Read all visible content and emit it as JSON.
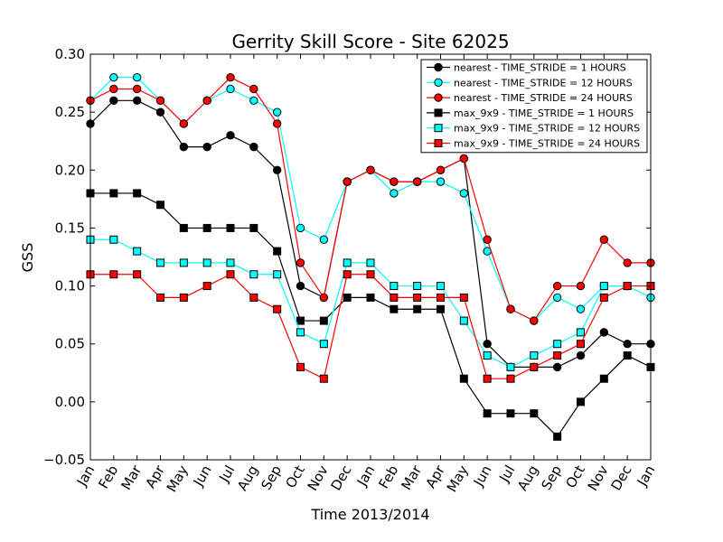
{
  "chart_data": {
    "type": "line",
    "title": "Gerrity Skill Score - Site 62025",
    "xlabel": "Time 2013/2014",
    "ylabel": "GSS",
    "ylim": [
      -0.05,
      0.3
    ],
    "yticks": [
      -0.05,
      0.0,
      0.05,
      0.1,
      0.15,
      0.2,
      0.25,
      0.3
    ],
    "ytick_labels": [
      "−0.05",
      "0.00",
      "0.05",
      "0.10",
      "0.15",
      "0.20",
      "0.25",
      "0.30"
    ],
    "categories": [
      "Jan",
      "Feb",
      "Mar",
      "Apr",
      "May",
      "Jun",
      "Jul",
      "Aug",
      "Sep",
      "Oct",
      "Nov",
      "Dec",
      "Jan",
      "Feb",
      "Mar",
      "Apr",
      "May",
      "Jun",
      "Jul",
      "Aug",
      "Sep",
      "Oct",
      "Nov",
      "Dec",
      "Jan"
    ],
    "grid": false,
    "legend_position": "top-right",
    "series": [
      {
        "name": "nearest - TIME_STRIDE = 1 HOURS",
        "marker": "circle",
        "color": "#000000",
        "values": [
          0.24,
          0.26,
          0.26,
          0.25,
          0.22,
          0.22,
          0.23,
          0.22,
          0.2,
          0.1,
          0.09,
          0.19,
          0.2,
          0.19,
          0.19,
          0.2,
          0.21,
          0.05,
          0.03,
          0.03,
          0.03,
          0.04,
          0.06,
          0.05,
          0.05
        ]
      },
      {
        "name": "nearest - TIME_STRIDE = 12 HOURS",
        "marker": "circle",
        "color": "#00ffff",
        "values": [
          0.26,
          0.28,
          0.28,
          0.26,
          0.24,
          0.26,
          0.27,
          0.26,
          0.25,
          0.15,
          0.14,
          0.19,
          0.2,
          0.18,
          0.19,
          0.19,
          0.18,
          0.13,
          0.08,
          0.07,
          0.09,
          0.08,
          0.1,
          0.1,
          0.09
        ]
      },
      {
        "name": "nearest - TIME_STRIDE = 24 HOURS",
        "marker": "circle",
        "color": "#ff0000",
        "values": [
          0.26,
          0.27,
          0.27,
          0.26,
          0.24,
          0.26,
          0.28,
          0.27,
          0.24,
          0.12,
          0.09,
          0.19,
          0.2,
          0.19,
          0.19,
          0.2,
          0.21,
          0.14,
          0.08,
          0.07,
          0.1,
          0.1,
          0.14,
          0.12,
          0.12
        ]
      },
      {
        "name": "max_9x9 - TIME_STRIDE = 1 HOURS",
        "marker": "square",
        "color": "#000000",
        "values": [
          0.18,
          0.18,
          0.18,
          0.17,
          0.15,
          0.15,
          0.15,
          0.15,
          0.13,
          0.07,
          0.07,
          0.09,
          0.09,
          0.08,
          0.08,
          0.08,
          0.02,
          -0.01,
          -0.01,
          -0.01,
          -0.03,
          0.0,
          0.02,
          0.04,
          0.03
        ]
      },
      {
        "name": "max_9x9 - TIME_STRIDE = 12 HOURS",
        "marker": "square",
        "color": "#00ffff",
        "values": [
          0.14,
          0.14,
          0.13,
          0.12,
          0.12,
          0.12,
          0.12,
          0.11,
          0.11,
          0.06,
          0.05,
          0.12,
          0.12,
          0.1,
          0.1,
          0.1,
          0.07,
          0.04,
          0.03,
          0.04,
          0.05,
          0.06,
          0.1,
          0.1,
          0.1
        ]
      },
      {
        "name": "max_9x9 - TIME_STRIDE = 24 HOURS",
        "marker": "square",
        "color": "#ff0000",
        "values": [
          0.11,
          0.11,
          0.11,
          0.09,
          0.09,
          0.1,
          0.11,
          0.09,
          0.08,
          0.03,
          0.02,
          0.11,
          0.11,
          0.09,
          0.09,
          0.09,
          0.09,
          0.02,
          0.02,
          0.03,
          0.04,
          0.05,
          0.09,
          0.1,
          0.1
        ]
      }
    ]
  }
}
